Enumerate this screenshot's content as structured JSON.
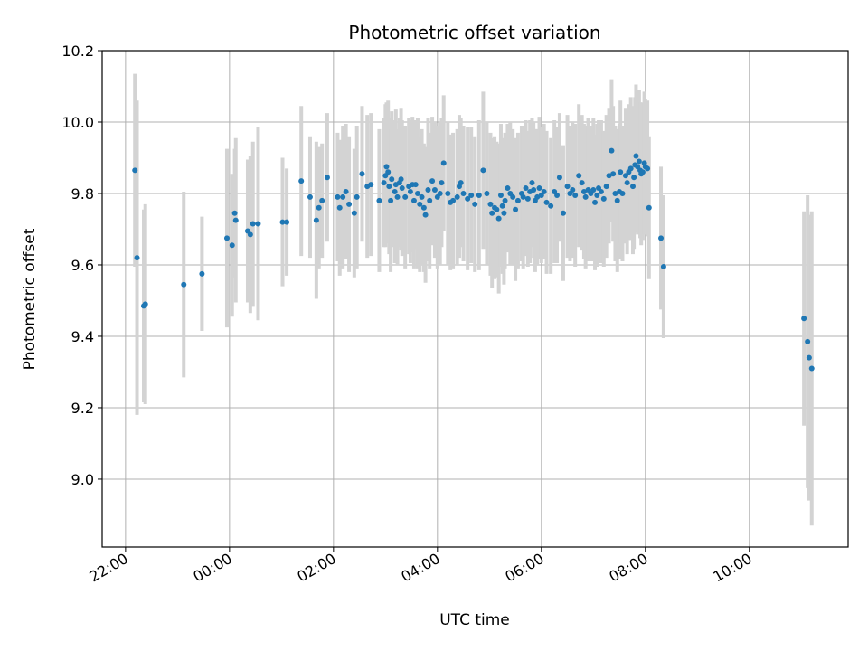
{
  "chart_data": {
    "type": "scatter",
    "title": "Photometric offset variation",
    "xlabel": "UTC time",
    "ylabel": "Photometric offset",
    "x_unit": "hours (UTC)",
    "xlim": [
      21.55,
      35.9
    ],
    "ylim": [
      8.81,
      10.2
    ],
    "grid": true,
    "x_ticks": [
      {
        "value": 22,
        "label": "22:00"
      },
      {
        "value": 24,
        "label": "00:00"
      },
      {
        "value": 26,
        "label": "02:00"
      },
      {
        "value": 28,
        "label": "04:00"
      },
      {
        "value": 30,
        "label": "06:00"
      },
      {
        "value": 32,
        "label": "08:00"
      },
      {
        "value": 34,
        "label": "10:00"
      }
    ],
    "y_ticks": [
      {
        "value": 9.0,
        "label": "9.0"
      },
      {
        "value": 9.2,
        "label": "9.2"
      },
      {
        "value": 9.4,
        "label": "9.4"
      },
      {
        "value": 9.6,
        "label": "9.6"
      },
      {
        "value": 9.8,
        "label": "9.8"
      },
      {
        "value": 10.0,
        "label": "10.0"
      },
      {
        "value": 10.2,
        "label": "10.2"
      }
    ],
    "colors": {
      "marker": "#1f77b4",
      "errorbar": "#d3d3d3",
      "grid": "#b0b0b0"
    },
    "series": [
      {
        "points": [
          [
            22.18,
            9.865,
            0.27
          ],
          [
            22.22,
            9.62,
            0.44
          ],
          [
            22.35,
            9.485,
            0.27
          ],
          [
            22.38,
            9.49,
            0.28
          ],
          [
            23.12,
            9.545,
            0.26
          ],
          [
            23.47,
            9.575,
            0.16
          ],
          [
            23.95,
            9.675,
            0.25
          ],
          [
            24.05,
            9.655,
            0.2
          ],
          [
            24.1,
            9.745,
            0.18
          ],
          [
            24.12,
            9.725,
            0.23
          ],
          [
            24.35,
            9.695,
            0.2
          ],
          [
            24.4,
            9.685,
            0.22
          ],
          [
            24.45,
            9.715,
            0.23
          ],
          [
            24.55,
            9.715,
            0.27
          ],
          [
            25.02,
            9.72,
            0.18
          ],
          [
            25.1,
            9.72,
            0.15
          ],
          [
            25.38,
            9.835,
            0.21
          ],
          [
            25.55,
            9.79,
            0.17
          ],
          [
            25.67,
            9.725,
            0.22
          ],
          [
            25.72,
            9.76,
            0.17
          ],
          [
            25.78,
            9.78,
            0.16
          ],
          [
            25.88,
            9.845,
            0.18
          ],
          [
            26.08,
            9.79,
            0.18
          ],
          [
            26.12,
            9.76,
            0.19
          ],
          [
            26.18,
            9.79,
            0.2
          ],
          [
            26.24,
            9.805,
            0.19
          ],
          [
            26.3,
            9.77,
            0.19
          ],
          [
            26.4,
            9.745,
            0.18
          ],
          [
            26.45,
            9.79,
            0.2
          ],
          [
            26.55,
            9.855,
            0.19
          ],
          [
            26.65,
            9.82,
            0.2
          ],
          [
            26.72,
            9.825,
            0.2
          ],
          [
            26.88,
            9.78,
            0.2
          ],
          [
            26.97,
            9.83,
            0.18
          ],
          [
            27.0,
            9.85,
            0.2
          ],
          [
            27.02,
            9.875,
            0.18
          ],
          [
            27.05,
            9.86,
            0.2
          ],
          [
            27.07,
            9.82,
            0.19
          ],
          [
            27.1,
            9.78,
            0.2
          ],
          [
            27.12,
            9.84,
            0.19
          ],
          [
            27.18,
            9.805,
            0.2
          ],
          [
            27.2,
            9.825,
            0.21
          ],
          [
            27.23,
            9.79,
            0.19
          ],
          [
            27.27,
            9.83,
            0.18
          ],
          [
            27.3,
            9.84,
            0.2
          ],
          [
            27.32,
            9.815,
            0.19
          ],
          [
            27.38,
            9.79,
            0.2
          ],
          [
            27.45,
            9.82,
            0.19
          ],
          [
            27.48,
            9.805,
            0.2
          ],
          [
            27.52,
            9.825,
            0.19
          ],
          [
            27.55,
            9.78,
            0.19
          ],
          [
            27.58,
            9.825,
            0.18
          ],
          [
            27.62,
            9.8,
            0.21
          ],
          [
            27.66,
            9.77,
            0.19
          ],
          [
            27.7,
            9.79,
            0.19
          ],
          [
            27.74,
            9.76,
            0.18
          ],
          [
            27.77,
            9.74,
            0.19
          ],
          [
            27.82,
            9.81,
            0.2
          ],
          [
            27.85,
            9.78,
            0.19
          ],
          [
            27.9,
            9.835,
            0.18
          ],
          [
            27.95,
            9.81,
            0.19
          ],
          [
            28.0,
            9.79,
            0.2
          ],
          [
            28.05,
            9.8,
            0.2
          ],
          [
            28.08,
            9.83,
            0.18
          ],
          [
            28.12,
            9.885,
            0.19
          ],
          [
            28.2,
            9.8,
            0.2
          ],
          [
            28.25,
            9.775,
            0.19
          ],
          [
            28.3,
            9.78,
            0.19
          ],
          [
            28.38,
            9.79,
            0.19
          ],
          [
            28.42,
            9.82,
            0.2
          ],
          [
            28.45,
            9.83,
            0.18
          ],
          [
            28.5,
            9.8,
            0.19
          ],
          [
            28.58,
            9.785,
            0.2
          ],
          [
            28.65,
            9.795,
            0.19
          ],
          [
            28.72,
            9.77,
            0.19
          ],
          [
            28.8,
            9.795,
            0.21
          ],
          [
            28.88,
            9.865,
            0.22
          ],
          [
            28.95,
            9.8,
            0.2
          ],
          [
            29.02,
            9.77,
            0.2
          ],
          [
            29.05,
            9.745,
            0.21
          ],
          [
            29.1,
            9.76,
            0.2
          ],
          [
            29.14,
            9.755,
            0.19
          ],
          [
            29.18,
            9.73,
            0.21
          ],
          [
            29.22,
            9.795,
            0.2
          ],
          [
            29.25,
            9.765,
            0.19
          ],
          [
            29.28,
            9.745,
            0.2
          ],
          [
            29.3,
            9.78,
            0.19
          ],
          [
            29.35,
            9.815,
            0.18
          ],
          [
            29.4,
            9.8,
            0.2
          ],
          [
            29.45,
            9.79,
            0.19
          ],
          [
            29.5,
            9.755,
            0.2
          ],
          [
            29.55,
            9.78,
            0.19
          ],
          [
            29.62,
            9.8,
            0.19
          ],
          [
            29.65,
            9.79,
            0.2
          ],
          [
            29.7,
            9.815,
            0.19
          ],
          [
            29.74,
            9.785,
            0.19
          ],
          [
            29.78,
            9.805,
            0.2
          ],
          [
            29.82,
            9.83,
            0.18
          ],
          [
            29.85,
            9.81,
            0.19
          ],
          [
            29.88,
            9.78,
            0.2
          ],
          [
            29.92,
            9.79,
            0.19
          ],
          [
            29.96,
            9.815,
            0.2
          ],
          [
            30.0,
            9.795,
            0.19
          ],
          [
            30.05,
            9.805,
            0.19
          ],
          [
            30.1,
            9.775,
            0.2
          ],
          [
            30.18,
            9.765,
            0.19
          ],
          [
            30.25,
            9.805,
            0.2
          ],
          [
            30.3,
            9.795,
            0.19
          ],
          [
            30.35,
            9.845,
            0.18
          ],
          [
            30.42,
            9.745,
            0.19
          ],
          [
            30.5,
            9.82,
            0.2
          ],
          [
            30.55,
            9.8,
            0.19
          ],
          [
            30.6,
            9.81,
            0.19
          ],
          [
            30.65,
            9.795,
            0.2
          ],
          [
            30.72,
            9.85,
            0.2
          ],
          [
            30.78,
            9.83,
            0.19
          ],
          [
            30.82,
            9.805,
            0.19
          ],
          [
            30.85,
            9.79,
            0.2
          ],
          [
            30.9,
            9.81,
            0.2
          ],
          [
            30.95,
            9.8,
            0.19
          ],
          [
            31.0,
            9.81,
            0.2
          ],
          [
            31.03,
            9.775,
            0.19
          ],
          [
            31.07,
            9.795,
            0.2
          ],
          [
            31.1,
            9.815,
            0.19
          ],
          [
            31.15,
            9.805,
            0.2
          ],
          [
            31.2,
            9.785,
            0.19
          ],
          [
            31.25,
            9.82,
            0.2
          ],
          [
            31.3,
            9.85,
            0.19
          ],
          [
            31.35,
            9.92,
            0.2
          ],
          [
            31.38,
            9.855,
            0.19
          ],
          [
            31.42,
            9.8,
            0.19
          ],
          [
            31.46,
            9.78,
            0.2
          ],
          [
            31.5,
            9.805,
            0.19
          ],
          [
            31.52,
            9.86,
            0.2
          ],
          [
            31.56,
            9.8,
            0.19
          ],
          [
            31.62,
            9.85,
            0.19
          ],
          [
            31.65,
            9.83,
            0.2
          ],
          [
            31.68,
            9.86,
            0.19
          ],
          [
            31.72,
            9.87,
            0.2
          ],
          [
            31.76,
            9.82,
            0.19
          ],
          [
            31.78,
            9.845,
            0.2
          ],
          [
            31.8,
            9.88,
            0.19
          ],
          [
            31.82,
            9.905,
            0.2
          ],
          [
            31.85,
            9.875,
            0.19
          ],
          [
            31.88,
            9.89,
            0.2
          ],
          [
            31.9,
            9.865,
            0.19
          ],
          [
            31.92,
            9.855,
            0.2
          ],
          [
            31.95,
            9.86,
            0.19
          ],
          [
            31.98,
            9.885,
            0.2
          ],
          [
            32.0,
            9.875,
            0.19
          ],
          [
            32.04,
            9.87,
            0.19
          ],
          [
            32.07,
            9.76,
            0.2
          ],
          [
            32.3,
            9.675,
            0.2
          ],
          [
            32.35,
            9.595,
            0.2
          ],
          [
            35.05,
            9.45,
            0.3
          ],
          [
            35.12,
            9.385,
            0.41
          ],
          [
            35.15,
            9.34,
            0.4
          ],
          [
            35.2,
            9.31,
            0.44
          ]
        ]
      }
    ]
  }
}
